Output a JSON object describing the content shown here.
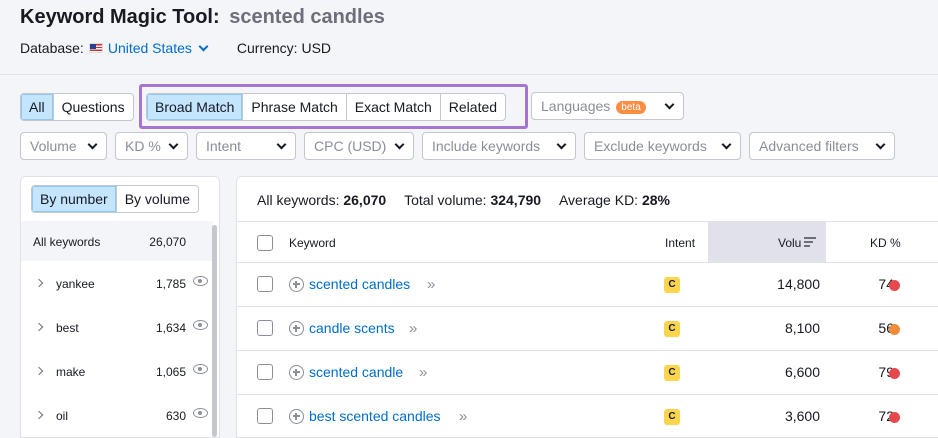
{
  "header": {
    "title": "Keyword Magic Tool:",
    "query": "scented candles",
    "database_label": "Database:",
    "database_value": "United States",
    "currency": "Currency: USD"
  },
  "match_tabs": {
    "all": "All",
    "questions": "Questions",
    "broad": "Broad Match",
    "phrase": "Phrase Match",
    "exact": "Exact Match",
    "related": "Related",
    "active": "Broad Match"
  },
  "languages": {
    "label": "Languages",
    "badge": "beta"
  },
  "filters": [
    "Volume",
    "KD %",
    "Intent",
    "CPC (USD)",
    "Include keywords",
    "Exclude keywords",
    "Advanced filters"
  ],
  "groups": {
    "by_number": "By number",
    "by_volume": "By volume",
    "all_label": "All keywords",
    "all_count": "26,070",
    "items": [
      {
        "name": "yankee",
        "count": "1,785"
      },
      {
        "name": "best",
        "count": "1,634"
      },
      {
        "name": "make",
        "count": "1,065"
      },
      {
        "name": "oil",
        "count": "630"
      }
    ]
  },
  "summary": {
    "all_label": "All keywords:",
    "all_value": "26,070",
    "volume_label": "Total volume:",
    "volume_value": "324,790",
    "kd_label": "Average KD:",
    "kd_value": "28%"
  },
  "table": {
    "columns": {
      "keyword": "Keyword",
      "intent": "Intent",
      "volume": "Volu",
      "kd": "KD %"
    },
    "rows": [
      {
        "keyword": "scented candles",
        "intent": "C",
        "volume": "14,800",
        "kd": "74",
        "kd_color": "#e5484d"
      },
      {
        "keyword": "candle scents",
        "intent": "C",
        "volume": "8,100",
        "kd": "56",
        "kd_color": "#f08c3a"
      },
      {
        "keyword": "scented candle",
        "intent": "C",
        "volume": "6,600",
        "kd": "79",
        "kd_color": "#e5484d"
      },
      {
        "keyword": "best scented candles",
        "intent": "C",
        "volume": "3,600",
        "kd": "72",
        "kd_color": "#e5484d"
      }
    ]
  },
  "colors": {
    "accent": "#006dca",
    "highlight": "#a675cf",
    "active_tab": "#c4e5fe"
  }
}
